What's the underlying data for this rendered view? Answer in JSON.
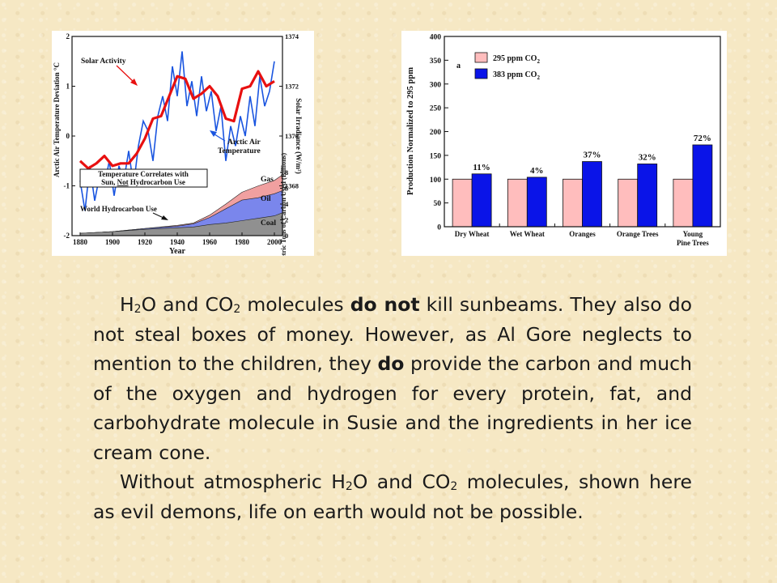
{
  "chart_data": [
    {
      "type": "line",
      "title": "",
      "ylabel": "Arctic Air Temperature Deviation °C",
      "y2label": "Solar Irradiance (W/m²)",
      "y3label": "Metric Tons of Carbon Used (Billions)",
      "xlabel": "Year",
      "xticks": [
        "1880",
        "1900",
        "1920",
        "1940",
        "1960",
        "1980",
        "2000"
      ],
      "yticks": [
        "2",
        "1",
        "0",
        "-1",
        "-2"
      ],
      "y2ticks": [
        "1374",
        "1372",
        "1370",
        "1368"
      ],
      "y3ticks": [
        "8",
        "6",
        "4",
        "2",
        "0"
      ],
      "ylim": [
        -2,
        2
      ],
      "y2lim": [
        1366,
        1374
      ],
      "y3lim": [
        0,
        8
      ],
      "xlim": [
        1875,
        2005
      ],
      "annotations": {
        "solar": "Solar Activity",
        "arctic_1": "Arctic Air",
        "arctic_2": "Temperature",
        "box_1": "Temperature Correlates with",
        "box_2a": "Sun,",
        "box_2b": "Not",
        "box_2c": "Hydrocarbon Use",
        "world": "World Hydrocarbon Use",
        "gas": "Gas",
        "oil": "Oil",
        "coal": "Coal"
      },
      "series": [
        {
          "name": "Solar Activity",
          "color": "#e81010",
          "axis": "y2",
          "x": [
            1880,
            1885,
            1890,
            1895,
            1900,
            1905,
            1910,
            1915,
            1920,
            1925,
            1930,
            1935,
            1940,
            1945,
            1950,
            1955,
            1960,
            1965,
            1970,
            1975,
            1980,
            1985,
            1990,
            1995,
            2000
          ],
          "values": [
            1369.0,
            1368.7,
            1368.9,
            1369.2,
            1368.8,
            1368.9,
            1368.9,
            1369.3,
            1369.9,
            1370.7,
            1370.8,
            1371.6,
            1372.4,
            1372.3,
            1371.5,
            1371.7,
            1372.0,
            1371.6,
            1370.7,
            1370.6,
            1371.9,
            1372.0,
            1372.6,
            1372.0,
            1372.2
          ]
        },
        {
          "name": "Arctic Air Temperature",
          "color": "#1a55e0",
          "axis": "y",
          "x": [
            1880,
            1883,
            1886,
            1889,
            1892,
            1895,
            1898,
            1901,
            1904,
            1907,
            1910,
            1913,
            1916,
            1919,
            1922,
            1925,
            1928,
            1931,
            1934,
            1937,
            1940,
            1943,
            1946,
            1949,
            1952,
            1955,
            1958,
            1961,
            1964,
            1967,
            1970,
            1973,
            1976,
            1979,
            1982,
            1985,
            1988,
            1991,
            1994,
            1997,
            2000
          ],
          "values": [
            -0.9,
            -1.5,
            -0.6,
            -1.3,
            -0.8,
            -1.0,
            -0.5,
            -1.2,
            -0.6,
            -0.9,
            -0.3,
            -1.0,
            -0.2,
            0.3,
            0.1,
            -0.5,
            0.4,
            0.8,
            0.3,
            1.4,
            0.8,
            1.7,
            0.6,
            1.1,
            0.4,
            1.2,
            0.5,
            0.9,
            0.1,
            0.6,
            -0.5,
            0.2,
            -0.2,
            0.4,
            0.0,
            0.8,
            0.2,
            1.2,
            0.6,
            0.9,
            1.5
          ]
        },
        {
          "name": "Coal",
          "color": "#909090",
          "axis": "y3",
          "x": [
            1880,
            1900,
            1920,
            1940,
            1950,
            1960,
            1970,
            1980,
            1990,
            2000,
            2005
          ],
          "values": [
            0.3,
            0.5,
            0.8,
            1.0,
            1.1,
            1.4,
            1.6,
            1.9,
            2.2,
            2.5,
            2.9
          ]
        },
        {
          "name": "Oil",
          "color": "#7a86ec",
          "axis": "y3",
          "x": [
            1880,
            1900,
            1920,
            1940,
            1950,
            1960,
            1970,
            1980,
            1990,
            2000,
            2005
          ],
          "values": [
            0.3,
            0.5,
            0.9,
            1.2,
            1.5,
            2.3,
            3.4,
            4.5,
            4.8,
            5.3,
            5.7
          ]
        },
        {
          "name": "Gas",
          "color": "#f0a0a0",
          "axis": "y3",
          "x": [
            1880,
            1900,
            1920,
            1940,
            1950,
            1960,
            1970,
            1980,
            1990,
            2000,
            2005
          ],
          "values": [
            0.3,
            0.5,
            0.9,
            1.3,
            1.6,
            2.6,
            4.0,
            5.5,
            6.3,
            7.0,
            7.7
          ]
        }
      ]
    },
    {
      "type": "bar",
      "title": "",
      "panel_label": "a",
      "ylabel": "Production Normalized to 295 ppm",
      "ylim": [
        0,
        400
      ],
      "yticks": [
        "0",
        "50",
        "100",
        "150",
        "200",
        "250",
        "300",
        "350",
        "400"
      ],
      "categories": [
        "Dry Wheat",
        "Wet Wheat",
        "Oranges",
        "Orange Trees",
        "Young Pine Trees"
      ],
      "category_lines": [
        [
          "Dry Wheat"
        ],
        [
          "Wet Wheat"
        ],
        [
          "Oranges"
        ],
        [
          "Orange Trees"
        ],
        [
          "Young",
          "Pine Trees"
        ]
      ],
      "legend_loc": "top-left",
      "legend": {
        "a_main": "295 ppm CO",
        "a_sub": "2",
        "b_main": "383 ppm CO",
        "b_sub": "2"
      },
      "series": [
        {
          "color": "#ffbdbd",
          "values": [
            100,
            100,
            100,
            100,
            100
          ]
        },
        {
          "color": "#0a14e8",
          "values": [
            111,
            104,
            137,
            132,
            172
          ]
        }
      ],
      "data_labels": [
        "11%",
        "4%",
        "37%",
        "32%",
        "72%"
      ]
    }
  ],
  "text": {
    "p1_h2o_h": "H",
    "p1_h2o_2": "2",
    "p1_h2o_o": "O and CO",
    "p1_co2_2": "2",
    "p1_a": " molecules ",
    "p1_bold1": "do not",
    "p1_b": " kill sunbeams. They also do not steal boxes of money. However, as Al Gore neglects to mention to the children, they ",
    "p1_bold2": "do",
    "p1_c": " provide the carbon and much of the oxygen and hydrogen for every protein, fat, and carbohydrate molecule in Susie and the ingredients in her ice cream cone.",
    "p2_a": "Without atmospheric H",
    "p2_h2o_2": "2",
    "p2_b": "O and CO",
    "p2_co2_2": "2",
    "p2_c": " molecules, shown here as evil demons, life on earth would not be possible."
  }
}
